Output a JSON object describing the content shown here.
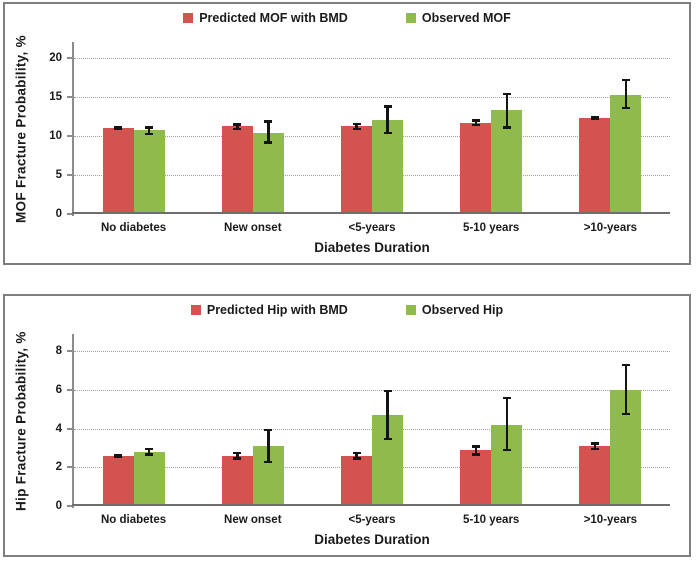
{
  "colors": {
    "predicted": "#d5534e",
    "observed": "#8ebb4b",
    "error_bar": "#141414",
    "gridline": "#a3a3a3",
    "axis_line": "#8c8c8c",
    "panel_border": "#7e7e7e",
    "text": "#1a1a1a"
  },
  "chart_data": [
    {
      "type": "bar",
      "title": "",
      "ylabel": "MOF Fracture Probability, %",
      "xlabel": "Diabetes Duration",
      "categories": [
        "No diabetes",
        "New onset",
        "<5-years",
        "5-10 years",
        ">10-years"
      ],
      "yticks": [
        0,
        5,
        10,
        15,
        20
      ],
      "ylim": [
        0,
        20
      ],
      "plot_max": 21.75,
      "grid": "horizontal-dotted",
      "legend_position": "top-center",
      "series": [
        {
          "name": "Predicted MOF with BMD",
          "color_key": "predicted",
          "values": [
            11.0,
            11.2,
            11.2,
            11.6,
            12.3
          ],
          "error_low": [
            10.8,
            10.7,
            10.7,
            11.2,
            12.0
          ],
          "error_high": [
            11.2,
            11.6,
            11.7,
            12.1,
            12.6
          ]
        },
        {
          "name": "Observed MOF",
          "color_key": "observed",
          "values": [
            10.7,
            10.4,
            12.0,
            13.3,
            15.2
          ],
          "error_low": [
            10.1,
            9.0,
            10.2,
            10.9,
            13.4
          ],
          "error_high": [
            11.2,
            12.0,
            13.9,
            15.5,
            17.3
          ]
        }
      ]
    },
    {
      "type": "bar",
      "title": "",
      "ylabel": "Hip Fracture Probability, %",
      "xlabel": "Diabetes Duration",
      "categories": [
        "No diabetes",
        "New onset",
        "<5-years",
        "5-10 years",
        ">10-years"
      ],
      "yticks": [
        0,
        2,
        4,
        6,
        8
      ],
      "ylim": [
        0,
        8
      ],
      "plot_max": 8.8,
      "grid": "horizontal-dotted",
      "legend_position": "top-center",
      "series": [
        {
          "name": "Predicted Hip with BMD",
          "color_key": "predicted",
          "values": [
            2.6,
            2.6,
            2.6,
            2.9,
            3.1
          ],
          "error_low": [
            2.5,
            2.4,
            2.4,
            2.6,
            2.9
          ],
          "error_high": [
            2.7,
            2.8,
            2.8,
            3.15,
            3.3
          ]
        },
        {
          "name": "Observed Hip",
          "color_key": "observed",
          "values": [
            2.8,
            3.1,
            4.7,
            4.2,
            6.0
          ],
          "error_low": [
            2.6,
            2.2,
            3.4,
            2.85,
            4.7
          ],
          "error_high": [
            3.0,
            4.0,
            6.0,
            5.65,
            7.35
          ]
        }
      ]
    }
  ]
}
